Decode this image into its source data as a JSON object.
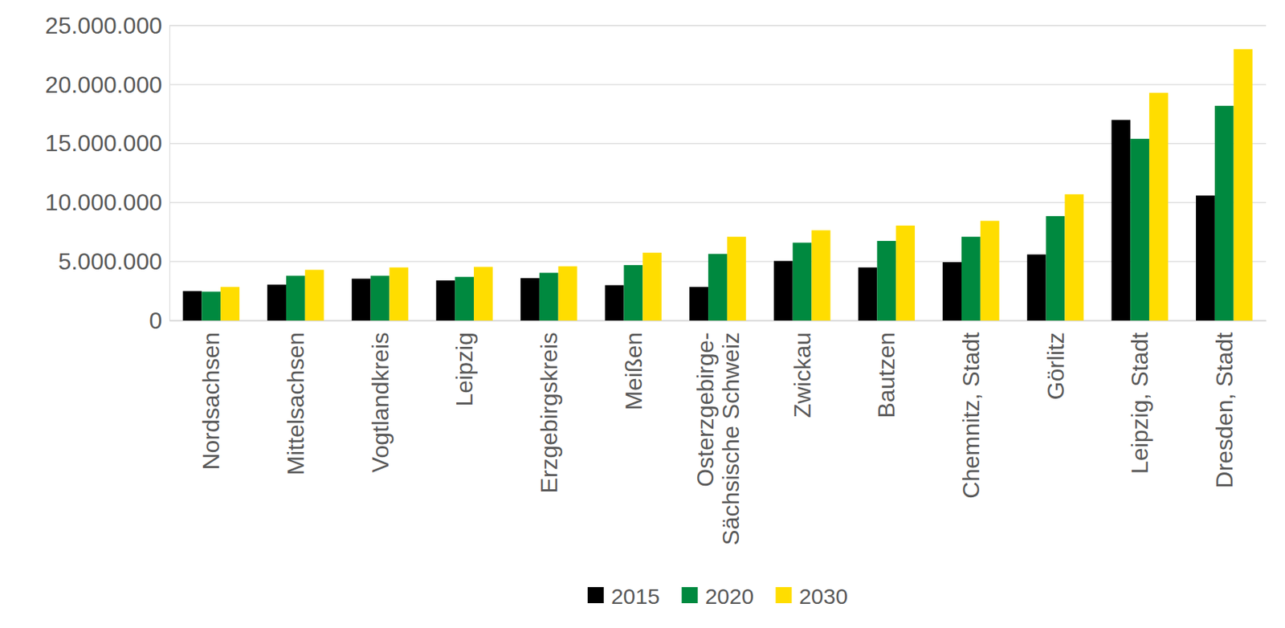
{
  "chart_data": {
    "type": "bar",
    "categories": [
      "Nordsachsen",
      "Mittelsachsen",
      "Vogtlandkreis",
      "Leipzig",
      "Erzgebirgskreis",
      "Meißen",
      "Osterzgebirge-Sächsische Schweiz",
      "Zwickau",
      "Bautzen",
      "Chemnitz, Stadt",
      "Görlitz",
      "Leipzig, Stadt",
      "Dresden, Stadt"
    ],
    "series": [
      {
        "name": "2015",
        "color": "#000000",
        "values": [
          2500000,
          3050000,
          3550000,
          3400000,
          3600000,
          3000000,
          2850000,
          5050000,
          4500000,
          4950000,
          5600000,
          17000000,
          10600000
        ]
      },
      {
        "name": "2020",
        "color": "#00893f",
        "values": [
          2450000,
          3800000,
          3800000,
          3700000,
          4050000,
          4700000,
          5650000,
          6600000,
          6750000,
          7100000,
          8850000,
          15400000,
          18200000
        ]
      },
      {
        "name": "2030",
        "color": "#ffdd00",
        "values": [
          2850000,
          4300000,
          4500000,
          4550000,
          4600000,
          5750000,
          7100000,
          7650000,
          8050000,
          8450000,
          10700000,
          19300000,
          23000000
        ]
      }
    ],
    "ylim": [
      0,
      25000000
    ],
    "yticks": [
      0,
      {
        "value": 5000000,
        "label": "5.000.000"
      },
      {
        "value": 10000000,
        "label": "10.000.000"
      },
      {
        "value": 15000000,
        "label": "15.000.000"
      },
      {
        "value": 20000000,
        "label": "20.000.000"
      },
      {
        "value": 25000000,
        "label": "25.000.000"
      }
    ],
    "grid": true,
    "legend": "bottom"
  }
}
